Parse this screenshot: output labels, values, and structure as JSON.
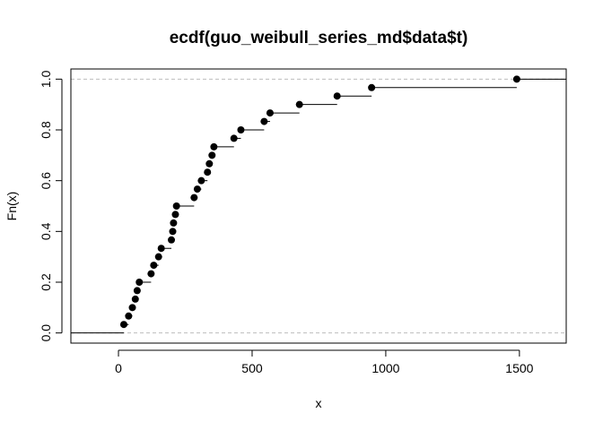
{
  "chart_data": {
    "type": "step",
    "title": "ecdf(guo_weibull_series_md$data$t)",
    "xlabel": "x",
    "ylabel": "Fn(x)",
    "xlim": [
      -178,
      1675
    ],
    "ylim": [
      -0.04,
      1.04
    ],
    "xticks": [
      0,
      500,
      1000,
      1500
    ],
    "xtick_labels": [
      "0",
      "500",
      "1000",
      "1500"
    ],
    "yticks": [
      0.0,
      0.2,
      0.4,
      0.6,
      0.8,
      1.0
    ],
    "ytick_labels": [
      "0.0",
      "0.2",
      "0.4",
      "0.6",
      "0.8",
      "1.0"
    ],
    "reference_lines_y": [
      0,
      1
    ],
    "points": [
      {
        "x": 20,
        "y": 0.0333
      },
      {
        "x": 38,
        "y": 0.0667
      },
      {
        "x": 52,
        "y": 0.1
      },
      {
        "x": 63,
        "y": 0.1333
      },
      {
        "x": 70,
        "y": 0.1667
      },
      {
        "x": 78,
        "y": 0.2
      },
      {
        "x": 122,
        "y": 0.2333
      },
      {
        "x": 132,
        "y": 0.2667
      },
      {
        "x": 150,
        "y": 0.3
      },
      {
        "x": 160,
        "y": 0.3333
      },
      {
        "x": 198,
        "y": 0.3667
      },
      {
        "x": 203,
        "y": 0.4
      },
      {
        "x": 206,
        "y": 0.4333
      },
      {
        "x": 213,
        "y": 0.4667
      },
      {
        "x": 217,
        "y": 0.5
      },
      {
        "x": 283,
        "y": 0.5333
      },
      {
        "x": 295,
        "y": 0.5667
      },
      {
        "x": 310,
        "y": 0.6
      },
      {
        "x": 333,
        "y": 0.6333
      },
      {
        "x": 340,
        "y": 0.6667
      },
      {
        "x": 350,
        "y": 0.7
      },
      {
        "x": 357,
        "y": 0.7333
      },
      {
        "x": 432,
        "y": 0.7667
      },
      {
        "x": 458,
        "y": 0.8
      },
      {
        "x": 545,
        "y": 0.8333
      },
      {
        "x": 567,
        "y": 0.8667
      },
      {
        "x": 677,
        "y": 0.9
      },
      {
        "x": 818,
        "y": 0.9333
      },
      {
        "x": 947,
        "y": 0.9667
      },
      {
        "x": 1490,
        "y": 1.0
      }
    ]
  }
}
